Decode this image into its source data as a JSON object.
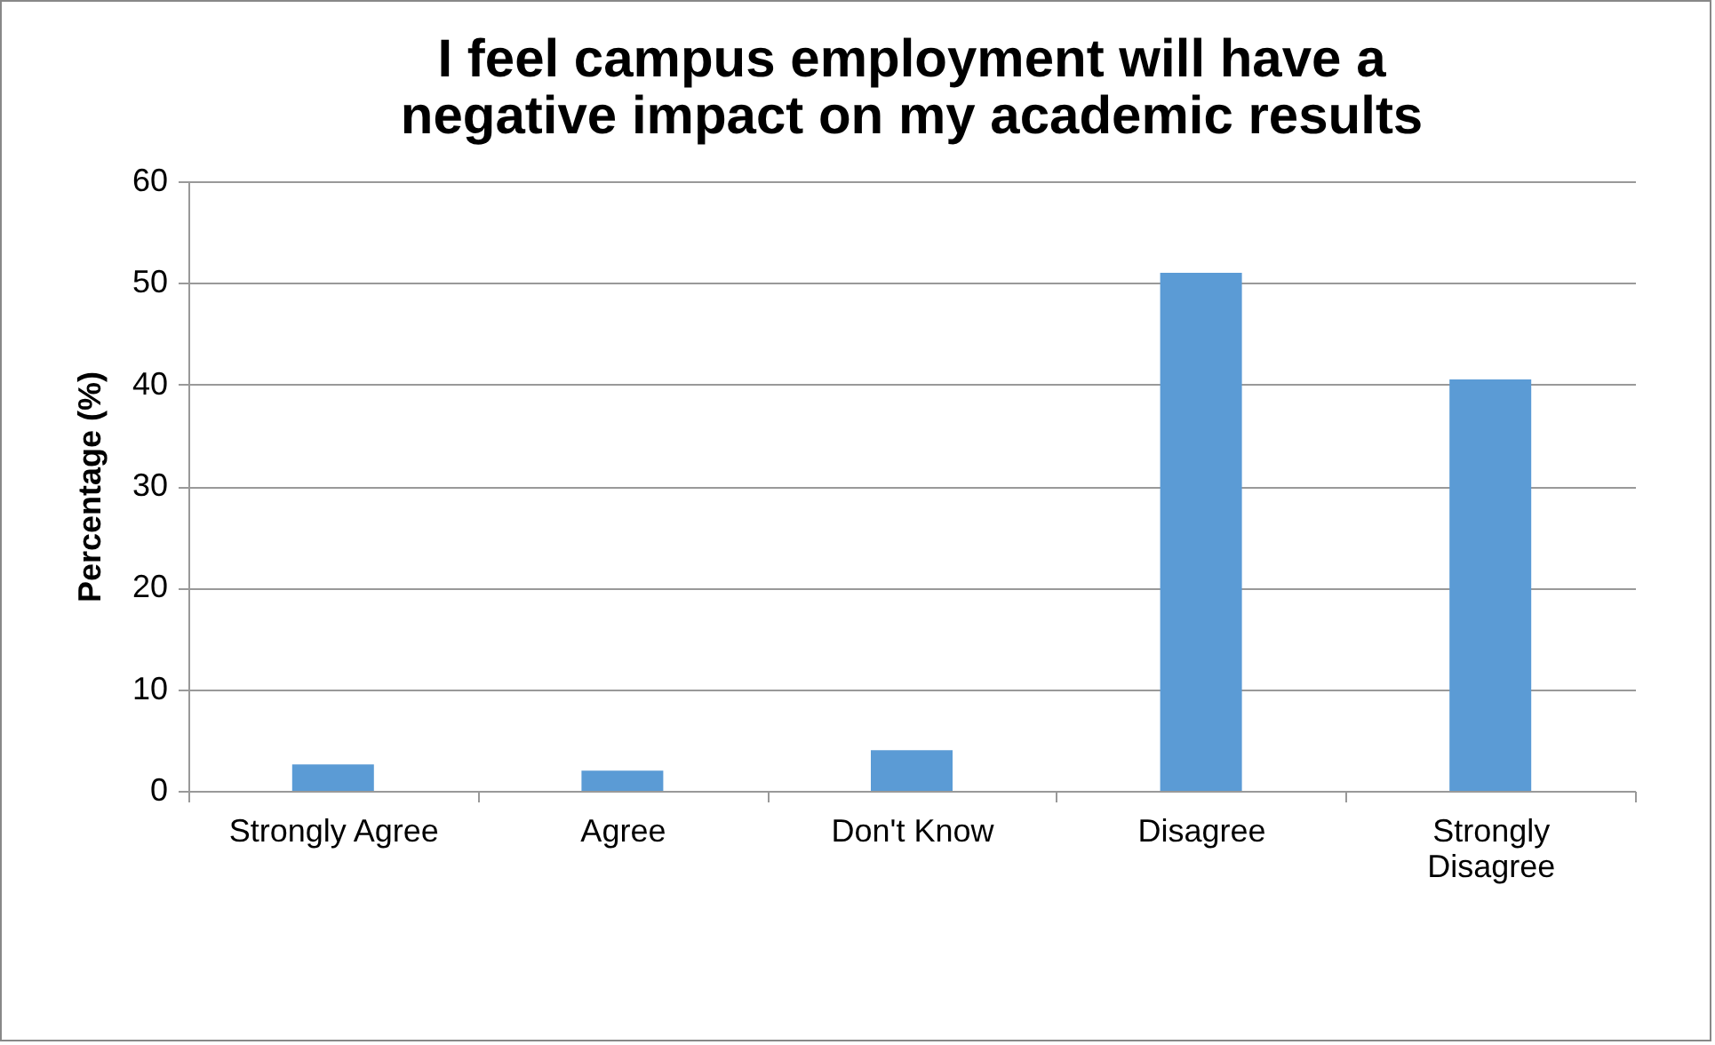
{
  "chart_data": {
    "type": "bar",
    "title": [
      "I feel campus employment will have a",
      "negative impact on my academic results"
    ],
    "ylabel": "Percentage (%)",
    "categories": [
      "Strongly Agree",
      "Agree",
      "Don't Know",
      "Disagree",
      "Strongly Disagree"
    ],
    "values": [
      2.6,
      2.0,
      4.0,
      51.0,
      40.5
    ],
    "color": "#5b9bd5",
    "ylim": [
      0,
      60
    ],
    "yticks": [
      0,
      10,
      20,
      30,
      40,
      50,
      60
    ],
    "grid": "y"
  }
}
